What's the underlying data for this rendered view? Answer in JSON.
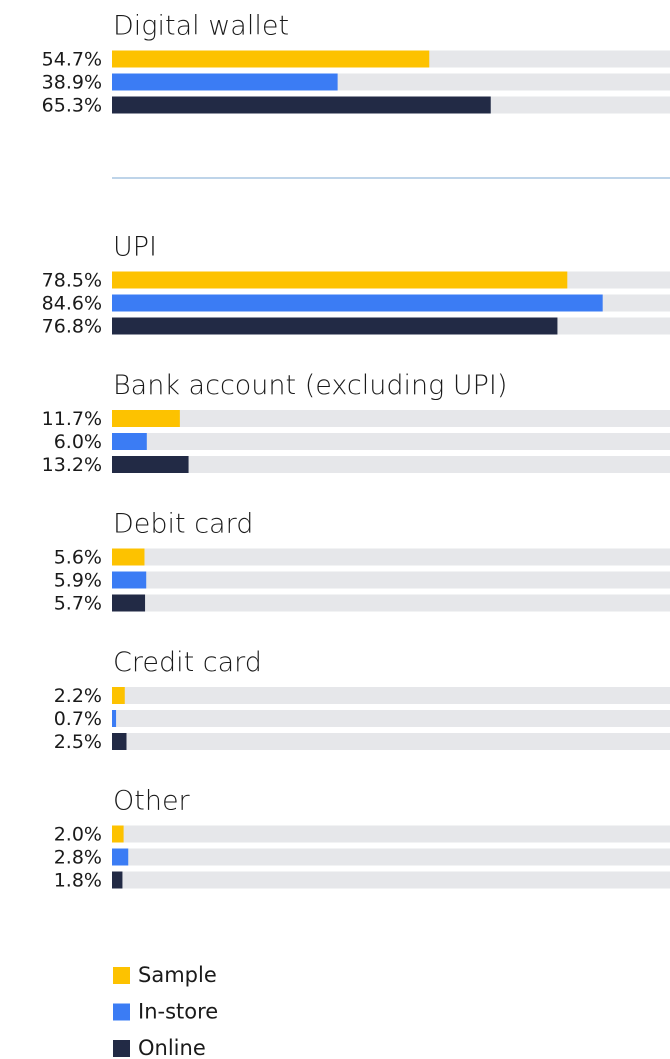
{
  "chart_data": {
    "type": "bar",
    "orientation": "horizontal",
    "categories": [
      "Digital wallet",
      "UPI",
      "Bank account (excluding UPI)",
      "Debit card",
      "Credit card",
      "Other"
    ],
    "xlim": [
      0,
      100
    ],
    "series": [
      {
        "name": "Sample",
        "color": "#fdc200",
        "values": [
          54.7,
          78.5,
          11.7,
          5.6,
          2.2,
          2.0
        ],
        "value_labels": [
          "54.7%",
          "78.5%",
          "11.7%",
          "5.6%",
          "2.2%",
          "2.0%"
        ]
      },
      {
        "name": "In-store",
        "color": "#3b7cf4",
        "values": [
          38.9,
          84.6,
          6.0,
          5.9,
          0.7,
          2.8
        ],
        "value_labels": [
          "38.9%",
          "84.6%",
          "6.0%",
          "5.9%",
          "0.7%",
          "2.8%"
        ]
      },
      {
        "name": "Online",
        "color": "#222a45",
        "values": [
          65.3,
          76.8,
          13.2,
          5.7,
          2.5,
          1.8
        ],
        "value_labels": [
          "65.3%",
          "76.8%",
          "13.2%",
          "5.7%",
          "2.5%",
          "1.8%"
        ]
      }
    ]
  }
}
